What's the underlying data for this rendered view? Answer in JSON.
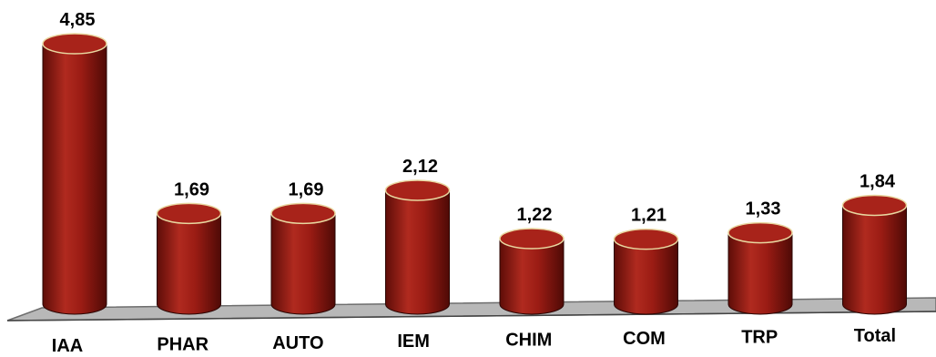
{
  "chart_data": {
    "type": "bar",
    "style": "3d-cylinder",
    "categories": [
      "IAA",
      "PHAR",
      "AUTO",
      "IEM",
      "CHIM",
      "COM",
      "TRP",
      "Total"
    ],
    "values": [
      4.85,
      1.69,
      1.69,
      2.12,
      1.22,
      1.21,
      1.33,
      1.84
    ],
    "value_labels": [
      "4,85",
      "1,69",
      "1,69",
      "2,12",
      "1,22",
      "1,21",
      "1,33",
      "1,84"
    ],
    "title": "",
    "xlabel": "",
    "ylabel": "",
    "ylim": [
      0,
      5
    ],
    "grid": false,
    "legend": "none",
    "colors": {
      "bar": "#9b1c14",
      "bar_dark": "#5e0d08",
      "bar_light": "#c2382c",
      "top": "#a8231a",
      "floor": "#b8b8b8",
      "floor_edge": "#6d6d6d"
    }
  }
}
